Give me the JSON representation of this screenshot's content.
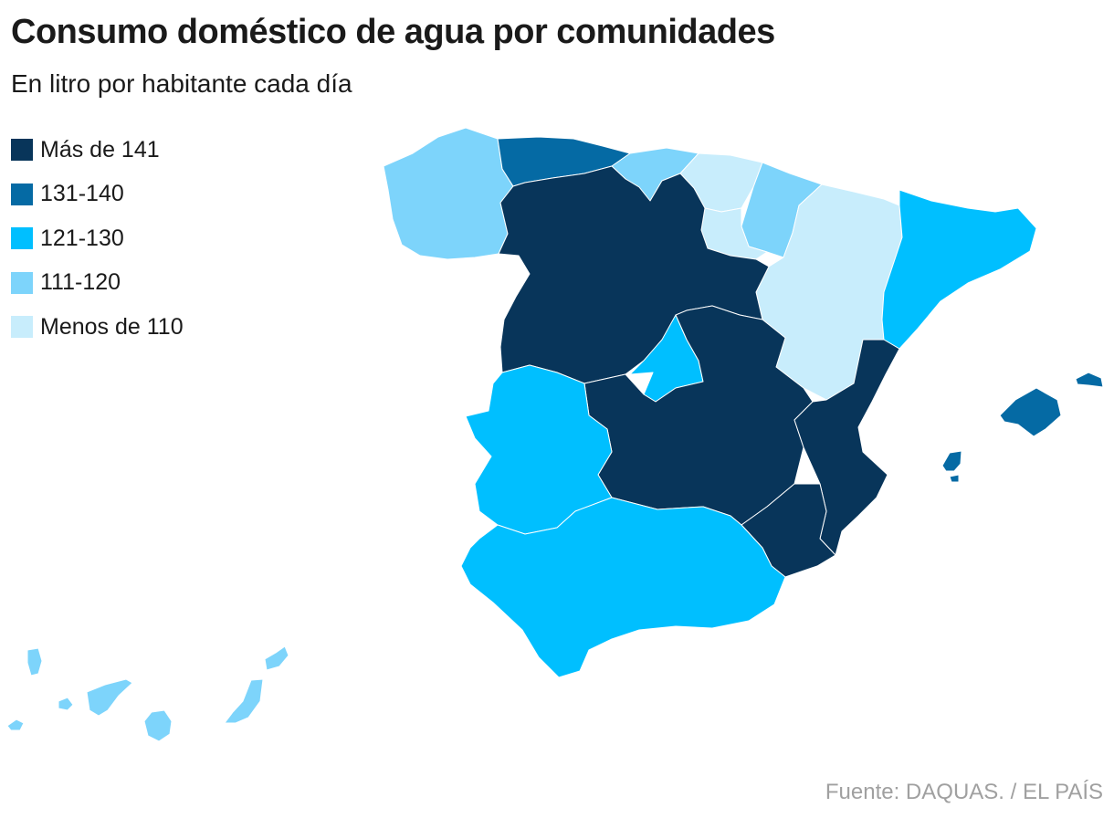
{
  "title": "Consumo doméstico de agua por comunidades",
  "subtitle": "En litro por habitante cada día",
  "legend": [
    {
      "label": "Más de 141",
      "color": "#08355a"
    },
    {
      "label": "131-140",
      "color": "#056aa4"
    },
    {
      "label": "121-130",
      "color": "#00bfff"
    },
    {
      "label": "111-120",
      "color": "#7dd4fb"
    },
    {
      "label": "Menos de 110",
      "color": "#c8edfc"
    }
  ],
  "regions": [
    {
      "name": "Galicia",
      "class": "111-120"
    },
    {
      "name": "Asturias",
      "class": "131-140"
    },
    {
      "name": "Cantabria",
      "class": "111-120"
    },
    {
      "name": "País Vasco",
      "class": "Menos de 110"
    },
    {
      "name": "Navarra",
      "class": "111-120"
    },
    {
      "name": "La Rioja",
      "class": "Menos de 110"
    },
    {
      "name": "Aragón",
      "class": "Menos de 110"
    },
    {
      "name": "Cataluña",
      "class": "121-130"
    },
    {
      "name": "Castilla y León",
      "class": "Más de 141"
    },
    {
      "name": "Madrid",
      "class": "121-130"
    },
    {
      "name": "Castilla-La Mancha",
      "class": "Más de 141"
    },
    {
      "name": "Comunidad Valenciana",
      "class": "Más de 141"
    },
    {
      "name": "Extremadura",
      "class": "121-130"
    },
    {
      "name": "Andalucía",
      "class": "121-130"
    },
    {
      "name": "Murcia",
      "class": "Más de 141"
    },
    {
      "name": "Baleares",
      "class": "131-140"
    },
    {
      "name": "Canarias",
      "class": "111-120"
    }
  ],
  "source": "Fuente: DAQUAS. / EL PAÍS"
}
